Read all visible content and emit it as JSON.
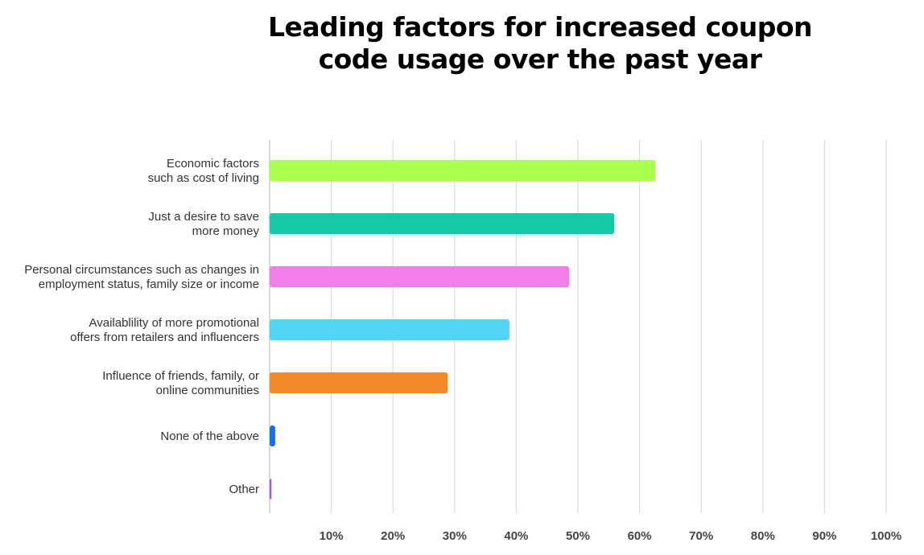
{
  "chart_data": {
    "type": "bar",
    "orientation": "horizontal",
    "title_lines": [
      "Leading factors for increased coupon",
      "code usage over the past year"
    ],
    "categories": [
      [
        "Economic factors",
        "such as cost of living"
      ],
      [
        "Just a desire to save",
        "more money"
      ],
      [
        "Personal circumstances such as changes in",
        "employment status, family size or income"
      ],
      [
        "Availablility of more promotional",
        "offers from retailers and influencers"
      ],
      [
        "Influence of friends, family, or",
        "online communities"
      ],
      [
        "None of the above"
      ],
      [
        "Other"
      ]
    ],
    "values": [
      62.6,
      55.9,
      48.6,
      38.9,
      28.9,
      0.9,
      0.3
    ],
    "colors": [
      "#aaff4d",
      "#14c9a6",
      "#f27eeb",
      "#52d4f7",
      "#f2892a",
      "#1a6ef0",
      "#9b59e6"
    ],
    "xlim": [
      0,
      100
    ],
    "ticks": [
      10,
      20,
      30,
      40,
      50,
      60,
      70,
      80,
      90,
      100
    ],
    "tick_labels": [
      "10%",
      "20%",
      "30%",
      "40%",
      "50%",
      "60%",
      "70%",
      "80%",
      "90%",
      "100%"
    ],
    "grid": true,
    "xlabel": "",
    "ylabel": ""
  }
}
